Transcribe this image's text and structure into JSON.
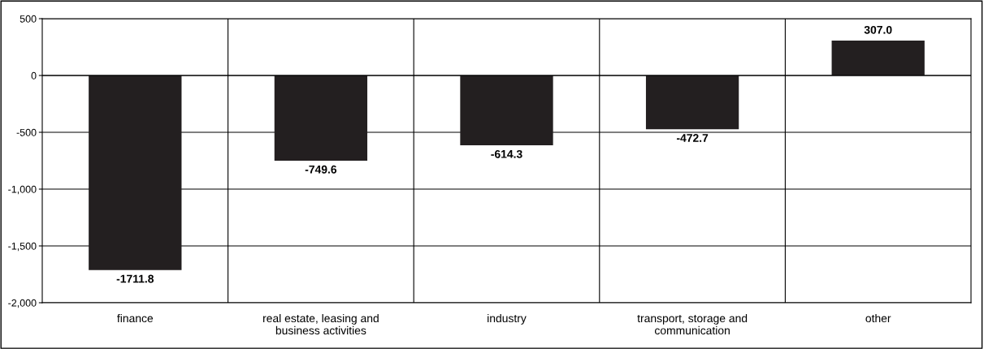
{
  "chart_data": {
    "type": "bar",
    "categories": [
      "finance",
      "real estate, leasing and\nbusiness activities",
      "industry",
      "transport, storage and\ncommunication",
      "other"
    ],
    "values": [
      -1711.8,
      -749.6,
      -614.3,
      -472.7,
      307.0
    ],
    "value_labels": [
      "-1711.8",
      "-749.6",
      "-614.3",
      "-472.7",
      "307.0"
    ],
    "color": "#231f20",
    "ylim": [
      -2000,
      500
    ],
    "yticks": [
      500,
      0,
      {
        "value": -500,
        "label": "-500"
      },
      {
        "value": -1000,
        "label": "-1,000"
      },
      {
        "value": -1500,
        "label": "-1,500"
      },
      {
        "value": -2000,
        "label": "-2,000"
      }
    ],
    "grid": true
  }
}
